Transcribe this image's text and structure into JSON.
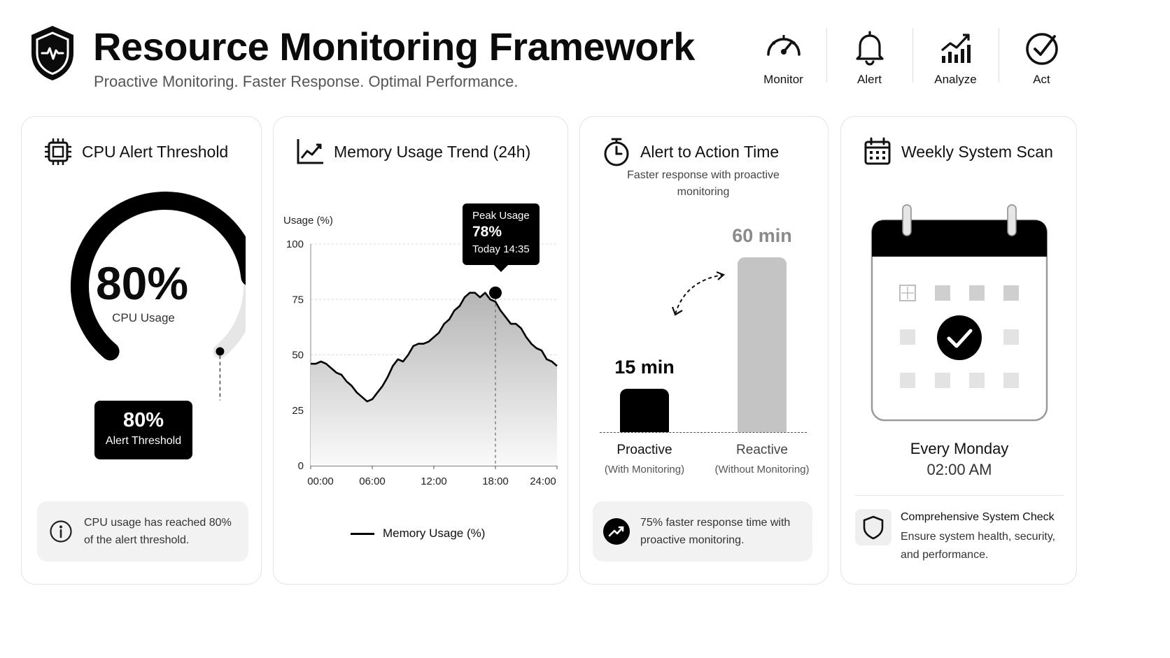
{
  "header": {
    "title": "Resource Monitoring Framework",
    "subtitle": "Proactive Monitoring. Faster Response. Optimal Performance.",
    "logo_icon": "shield-heartbeat-icon",
    "steps": [
      {
        "label": "Monitor",
        "icon": "gauge-icon"
      },
      {
        "label": "Alert",
        "icon": "bell-icon"
      },
      {
        "label": "Analyze",
        "icon": "chart-trend-icon"
      },
      {
        "label": "Act",
        "icon": "check-circle-icon"
      }
    ]
  },
  "cpu_card": {
    "title": "CPU Alert Threshold",
    "icon": "cpu-chip-icon",
    "gauge_value_text": "80%",
    "gauge_caption": "CPU Usage",
    "gauge_fraction": 0.8,
    "threshold_value": "80%",
    "threshold_label": "Alert Threshold",
    "note": "CPU usage has reached 80% of the alert threshold.",
    "note_icon": "info-icon"
  },
  "memory_card": {
    "title": "Memory Usage Trend (24h)",
    "icon": "line-chart-icon",
    "legend": "Memory Usage (%)",
    "tooltip": {
      "title": "Peak Usage",
      "value": "78%",
      "time": "Today 14:35"
    }
  },
  "chart_data": {
    "type": "area",
    "title": "",
    "xlabel": "",
    "ylabel": "Usage (%)",
    "ylim": [
      0,
      100
    ],
    "yticks": [
      "100",
      "75",
      "50",
      "25",
      "0"
    ],
    "xticks": [
      "00:00",
      "06:00",
      "12:00",
      "18:00",
      "24:00"
    ],
    "grid": true,
    "legend_position": "bottom",
    "series": [
      {
        "name": "Memory Usage (%)",
        "x": [
          0,
          0.5,
          1,
          1.5,
          2,
          2.5,
          3,
          3.5,
          4,
          4.5,
          5,
          5.5,
          6,
          6.5,
          7,
          7.5,
          8,
          8.5,
          9,
          9.5,
          10,
          10.5,
          11,
          11.5,
          12,
          12.5,
          13,
          13.5,
          14,
          14.5,
          15,
          15.5,
          16,
          16.5,
          17,
          17.5,
          18,
          18.5,
          19,
          19.5,
          20,
          20.5,
          21,
          21.5,
          22,
          22.5,
          23,
          23.5,
          24
        ],
        "values": [
          46,
          46,
          47,
          46,
          44,
          42,
          41,
          38,
          36,
          33,
          31,
          29,
          30,
          33,
          36,
          40,
          45,
          48,
          47,
          50,
          54,
          55,
          55,
          56,
          58,
          60,
          64,
          66,
          70,
          72,
          76,
          78,
          78,
          76,
          78,
          75,
          74,
          70,
          67,
          64,
          64,
          62,
          58,
          55,
          53,
          52,
          48,
          47,
          45
        ]
      }
    ]
  },
  "action_card": {
    "title": "Alert to Action Time",
    "icon": "stopwatch-icon",
    "subtitle": "Faster response with proactive monitoring",
    "bars": [
      {
        "value_text": "15 min",
        "value": 15,
        "label": "Proactive",
        "sub": "(With Monitoring)",
        "color": "#000000"
      },
      {
        "value_text": "60 min",
        "value": 60,
        "label": "Reactive",
        "sub": "(Without Monitoring)",
        "color": "#c4c4c4"
      }
    ],
    "note": "75% faster response time with proactive monitoring.",
    "note_icon": "trend-up-icon"
  },
  "scan_card": {
    "title": "Weekly System Scan",
    "icon": "calendar-icon",
    "day": "Every Monday",
    "time": "02:00 AM",
    "check_title": "Comprehensive System Check",
    "check_desc": "Ensure system health, security, and performance.",
    "check_icon": "shield-icon"
  }
}
